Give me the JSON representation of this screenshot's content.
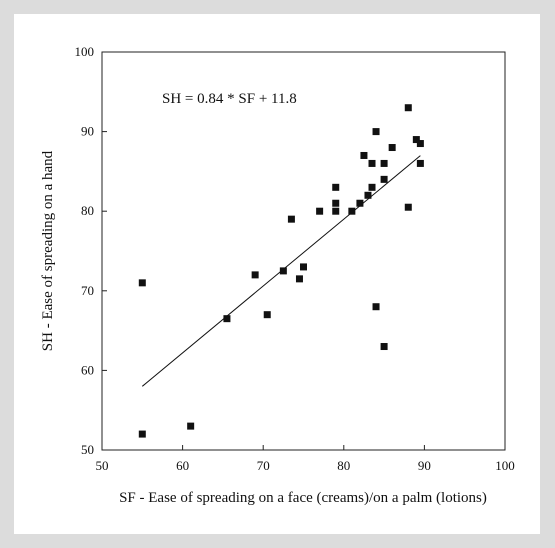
{
  "chart_data": {
    "type": "scatter",
    "title": "",
    "equation": "SH = 0.84 * SF + 11.8",
    "xlabel": "SF - Ease of spreading on a face (creams)/on a palm (lotions)",
    "ylabel": "SH - Ease of spreading on a hand",
    "xlim": [
      50,
      100
    ],
    "ylim": [
      50,
      100
    ],
    "xticks": [
      "50",
      "60",
      "70",
      "80",
      "90",
      "100"
    ],
    "yticks": [
      "50",
      "60",
      "70",
      "80",
      "90",
      "100"
    ],
    "grid": false,
    "marker_color": "#111111",
    "trend_line": {
      "slope": 0.84,
      "intercept": 11.8,
      "x_start": 55,
      "x_end": 89.5
    },
    "points": [
      [
        55,
        71
      ],
      [
        55,
        52
      ],
      [
        61,
        53
      ],
      [
        65.5,
        66.5
      ],
      [
        69,
        72
      ],
      [
        70.5,
        67
      ],
      [
        72.5,
        72.5
      ],
      [
        73.5,
        79
      ],
      [
        74.5,
        71.5
      ],
      [
        75,
        73
      ],
      [
        77,
        80
      ],
      [
        79,
        83
      ],
      [
        79,
        81
      ],
      [
        79,
        80
      ],
      [
        81,
        80
      ],
      [
        82,
        81
      ],
      [
        82.5,
        87
      ],
      [
        83,
        82
      ],
      [
        83.5,
        86
      ],
      [
        83.5,
        83
      ],
      [
        84,
        90
      ],
      [
        84,
        68
      ],
      [
        85,
        86
      ],
      [
        85,
        84
      ],
      [
        85,
        63
      ],
      [
        86,
        88
      ],
      [
        88,
        93
      ],
      [
        88,
        80.5
      ],
      [
        89,
        89
      ],
      [
        89.5,
        88.5
      ],
      [
        89.5,
        86
      ]
    ]
  }
}
